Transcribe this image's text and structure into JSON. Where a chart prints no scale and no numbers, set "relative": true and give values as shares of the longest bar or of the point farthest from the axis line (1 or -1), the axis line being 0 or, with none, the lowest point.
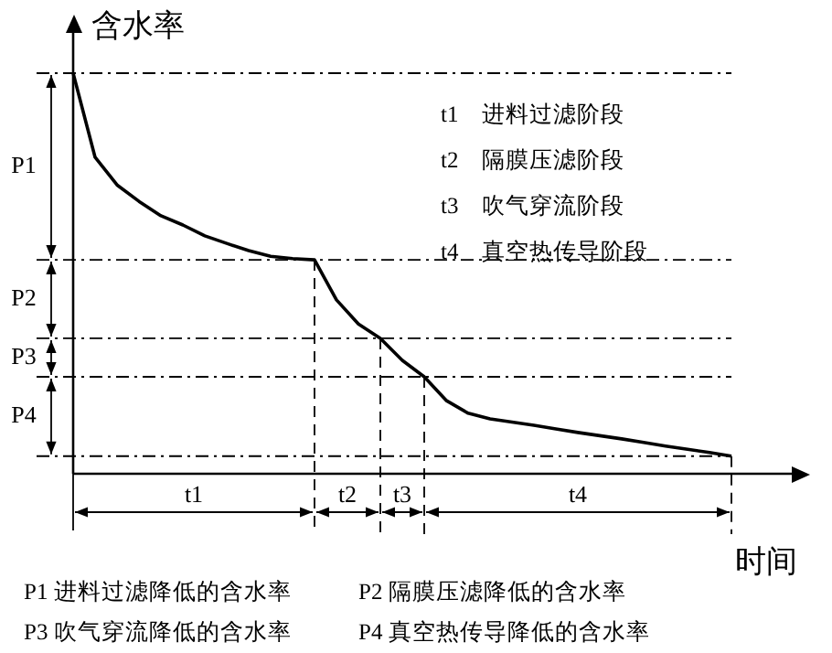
{
  "chart_data": {
    "type": "line",
    "ylabel": "含水率",
    "xlabel": "时间",
    "relative": true,
    "legend": false,
    "marker": "none",
    "line_style": "solid",
    "categories": [
      null,
      null,
      null,
      null,
      null,
      null,
      null,
      null,
      null,
      null,
      null,
      null,
      null,
      null,
      null,
      null,
      null,
      null,
      null,
      null,
      null,
      null,
      null,
      null,
      null,
      null,
      null,
      null,
      null,
      null,
      null
    ],
    "series": [
      {
        "color": "#000000",
        "values": [
          1,
          0.79,
          0.721,
          0.68,
          0.644,
          0.621,
          0.594,
          0.575,
          0.557,
          0.543,
          0.537,
          0.534,
          0.434,
          0.374,
          0.338,
          0.283,
          0.242,
          0.183,
          0.151,
          0.137,
          0.129,
          0.121,
          0.112,
          0.103,
          0.095,
          0.087,
          0.078,
          0.069,
          0.061,
          0.053,
          0.044
        ]
      }
    ],
    "ref_lines": [
      {
        "axis": "y",
        "value": 1
      },
      {
        "axis": "y",
        "value": 0.534
      },
      {
        "axis": "y",
        "value": 0.338
      },
      {
        "axis": "y",
        "value": 0.242
      },
      {
        "axis": "y",
        "value": 0.044
      }
    ],
    "annotations": [
      "t1　进料过滤阶段",
      "t2　隔膜压滤阶段",
      "t3　吹气穿流阶段",
      "t4　真空热传导阶段",
      "P1 进料过滤降低的含水率",
      "P2 隔膜压滤降低的含水率",
      "P3 吹气穿流降低的含水率",
      "P4 真空热传导降低的含水率",
      "P1",
      "P2",
      "P3",
      "P4",
      "t1",
      "t2",
      "t3",
      "t4"
    ]
  }
}
